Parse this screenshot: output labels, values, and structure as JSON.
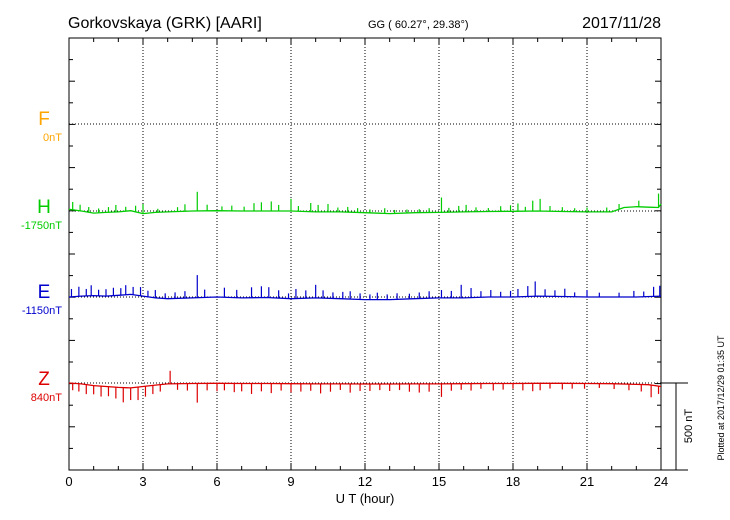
{
  "header": {
    "station": "Gorkovskaya (GRK)  [AARI]",
    "coords": "GG ( 60.27°,  29.38°)",
    "date": "2017/11/28"
  },
  "footer": {
    "plotted": "Plotted at 2017/12/29 01:35 UT"
  },
  "chart_data": {
    "type": "line",
    "xlabel": "U T (hour)",
    "xlim": [
      0,
      24
    ],
    "x_ticks": [
      "0",
      "3",
      "6",
      "9",
      "12",
      "15",
      "18",
      "21",
      "24"
    ],
    "grid": true,
    "scale_bar": {
      "label": "500 nT",
      "value_nT": 500
    },
    "series": [
      {
        "name": "F",
        "baseline": "0nT",
        "color": "#ffa500",
        "visible_data": false,
        "values": []
      },
      {
        "name": "H",
        "baseline": "-1750nT",
        "color": "#00cc00",
        "values": [
          {
            "t": 0.0,
            "v": 10
          },
          {
            "t": 0.25,
            "v": 5
          },
          {
            "t": 0.5,
            "v": 0
          },
          {
            "t": 1.0,
            "v": -12
          },
          {
            "t": 1.5,
            "v": -8
          },
          {
            "t": 2.0,
            "v": -5
          },
          {
            "t": 2.5,
            "v": 2
          },
          {
            "t": 3.0,
            "v": -15
          },
          {
            "t": 3.5,
            "v": -8
          },
          {
            "t": 4.0,
            "v": -5
          },
          {
            "t": 5.0,
            "v": 0
          },
          {
            "t": 6.0,
            "v": 2
          },
          {
            "t": 7.0,
            "v": 0
          },
          {
            "t": 8.0,
            "v": 0
          },
          {
            "t": 9.0,
            "v": 0
          },
          {
            "t": 10.0,
            "v": -5
          },
          {
            "t": 11.0,
            "v": -5
          },
          {
            "t": 12.0,
            "v": -10
          },
          {
            "t": 13.0,
            "v": -15
          },
          {
            "t": 14.0,
            "v": -10
          },
          {
            "t": 15.0,
            "v": -8
          },
          {
            "t": 16.0,
            "v": -5
          },
          {
            "t": 17.0,
            "v": -3
          },
          {
            "t": 18.0,
            "v": -2
          },
          {
            "t": 19.0,
            "v": 0
          },
          {
            "t": 20.0,
            "v": -3
          },
          {
            "t": 21.0,
            "v": -5
          },
          {
            "t": 22.0,
            "v": -5
          },
          {
            "t": 22.5,
            "v": 20
          },
          {
            "t": 23.0,
            "v": 25
          },
          {
            "t": 23.5,
            "v": 22
          },
          {
            "t": 23.9,
            "v": 20
          },
          {
            "t": 24.0,
            "v": 40
          }
        ],
        "spikes": [
          {
            "t": 0.15,
            "h": 45
          },
          {
            "t": 0.45,
            "h": 35
          },
          {
            "t": 0.8,
            "h": 30
          },
          {
            "t": 1.2,
            "h": 25
          },
          {
            "t": 1.6,
            "h": 30
          },
          {
            "t": 1.9,
            "h": 40
          },
          {
            "t": 2.3,
            "h": 25
          },
          {
            "t": 2.7,
            "h": 35
          },
          {
            "t": 3.0,
            "h": 55
          },
          {
            "t": 3.6,
            "h": 20
          },
          {
            "t": 4.4,
            "h": 25
          },
          {
            "t": 4.7,
            "h": 40
          },
          {
            "t": 5.2,
            "h": 110
          },
          {
            "t": 5.6,
            "h": 35
          },
          {
            "t": 6.2,
            "h": 25
          },
          {
            "t": 6.6,
            "h": 30
          },
          {
            "t": 7.1,
            "h": 25
          },
          {
            "t": 7.5,
            "h": 45
          },
          {
            "t": 7.8,
            "h": 50
          },
          {
            "t": 8.2,
            "h": 55
          },
          {
            "t": 8.5,
            "h": 35
          },
          {
            "t": 9.0,
            "h": 70
          },
          {
            "t": 9.3,
            "h": 30
          },
          {
            "t": 9.8,
            "h": 50
          },
          {
            "t": 10.1,
            "h": 40
          },
          {
            "t": 10.5,
            "h": 45
          },
          {
            "t": 10.9,
            "h": 25
          },
          {
            "t": 11.3,
            "h": 30
          },
          {
            "t": 11.7,
            "h": 25
          },
          {
            "t": 12.2,
            "h": 20
          },
          {
            "t": 12.8,
            "h": 30
          },
          {
            "t": 13.2,
            "h": 20
          },
          {
            "t": 13.7,
            "h": 20
          },
          {
            "t": 14.2,
            "h": 20
          },
          {
            "t": 14.6,
            "h": 25
          },
          {
            "t": 15.1,
            "h": 85
          },
          {
            "t": 15.4,
            "h": 25
          },
          {
            "t": 15.8,
            "h": 35
          },
          {
            "t": 16.1,
            "h": 40
          },
          {
            "t": 16.5,
            "h": 25
          },
          {
            "t": 17.0,
            "h": 20
          },
          {
            "t": 17.5,
            "h": 30
          },
          {
            "t": 17.9,
            "h": 35
          },
          {
            "t": 18.2,
            "h": 45
          },
          {
            "t": 18.5,
            "h": 25
          },
          {
            "t": 18.8,
            "h": 60
          },
          {
            "t": 19.1,
            "h": 70
          },
          {
            "t": 19.5,
            "h": 30
          },
          {
            "t": 20.0,
            "h": 25
          },
          {
            "t": 20.5,
            "h": 20
          },
          {
            "t": 21.0,
            "h": 25
          },
          {
            "t": 21.8,
            "h": 25
          },
          {
            "t": 22.3,
            "h": 30
          },
          {
            "t": 23.1,
            "h": 35
          },
          {
            "t": 23.9,
            "h": 80
          }
        ]
      },
      {
        "name": "E",
        "baseline": "-1150nT",
        "color": "#0000cc",
        "values": [
          {
            "t": 0.0,
            "v": 0
          },
          {
            "t": 0.5,
            "v": 5
          },
          {
            "t": 1.0,
            "v": 8
          },
          {
            "t": 1.5,
            "v": 5
          },
          {
            "t": 2.0,
            "v": 10
          },
          {
            "t": 2.5,
            "v": 15
          },
          {
            "t": 3.0,
            "v": 5
          },
          {
            "t": 3.5,
            "v": -5
          },
          {
            "t": 4.0,
            "v": -10
          },
          {
            "t": 5.0,
            "v": -5
          },
          {
            "t": 6.0,
            "v": 0
          },
          {
            "t": 7.0,
            "v": -5
          },
          {
            "t": 8.0,
            "v": -3
          },
          {
            "t": 9.0,
            "v": -10
          },
          {
            "t": 10.0,
            "v": -5
          },
          {
            "t": 11.0,
            "v": -10
          },
          {
            "t": 12.0,
            "v": -15
          },
          {
            "t": 13.0,
            "v": -15
          },
          {
            "t": 14.0,
            "v": -10
          },
          {
            "t": 15.0,
            "v": -5
          },
          {
            "t": 16.0,
            "v": -5
          },
          {
            "t": 17.0,
            "v": 0
          },
          {
            "t": 18.0,
            "v": 0
          },
          {
            "t": 19.0,
            "v": 5
          },
          {
            "t": 20.0,
            "v": 3
          },
          {
            "t": 21.0,
            "v": 0
          },
          {
            "t": 22.0,
            "v": 0
          },
          {
            "t": 23.0,
            "v": 0
          },
          {
            "t": 24.0,
            "v": 5
          }
        ],
        "spikes": [
          {
            "t": 0.1,
            "h": 45
          },
          {
            "t": 0.4,
            "h": 55
          },
          {
            "t": 0.7,
            "h": 40
          },
          {
            "t": 0.9,
            "h": 60
          },
          {
            "t": 1.2,
            "h": 35
          },
          {
            "t": 1.5,
            "h": 40
          },
          {
            "t": 1.8,
            "h": 45
          },
          {
            "t": 2.1,
            "h": 40
          },
          {
            "t": 2.3,
            "h": 55
          },
          {
            "t": 2.6,
            "h": 45
          },
          {
            "t": 2.9,
            "h": 50
          },
          {
            "t": 3.2,
            "h": 35
          },
          {
            "t": 3.5,
            "h": 45
          },
          {
            "t": 3.9,
            "h": 30
          },
          {
            "t": 4.3,
            "h": 35
          },
          {
            "t": 4.7,
            "h": 40
          },
          {
            "t": 5.2,
            "h": 130
          },
          {
            "t": 5.5,
            "h": 45
          },
          {
            "t": 6.3,
            "h": 55
          },
          {
            "t": 6.8,
            "h": 45
          },
          {
            "t": 7.4,
            "h": 60
          },
          {
            "t": 7.8,
            "h": 65
          },
          {
            "t": 8.1,
            "h": 60
          },
          {
            "t": 8.5,
            "h": 45
          },
          {
            "t": 8.9,
            "h": 30
          },
          {
            "t": 9.2,
            "h": 55
          },
          {
            "t": 9.6,
            "h": 45
          },
          {
            "t": 10.0,
            "h": 75
          },
          {
            "t": 10.3,
            "h": 45
          },
          {
            "t": 10.7,
            "h": 35
          },
          {
            "t": 11.1,
            "h": 40
          },
          {
            "t": 11.4,
            "h": 45
          },
          {
            "t": 11.8,
            "h": 35
          },
          {
            "t": 12.2,
            "h": 30
          },
          {
            "t": 12.5,
            "h": 40
          },
          {
            "t": 12.9,
            "h": 30
          },
          {
            "t": 13.3,
            "h": 35
          },
          {
            "t": 13.8,
            "h": 30
          },
          {
            "t": 14.2,
            "h": 35
          },
          {
            "t": 14.6,
            "h": 40
          },
          {
            "t": 15.1,
            "h": 45
          },
          {
            "t": 15.5,
            "h": 40
          },
          {
            "t": 15.9,
            "h": 75
          },
          {
            "t": 16.3,
            "h": 55
          },
          {
            "t": 16.7,
            "h": 35
          },
          {
            "t": 17.1,
            "h": 40
          },
          {
            "t": 17.5,
            "h": 30
          },
          {
            "t": 17.9,
            "h": 35
          },
          {
            "t": 18.2,
            "h": 45
          },
          {
            "t": 18.6,
            "h": 60
          },
          {
            "t": 18.9,
            "h": 85
          },
          {
            "t": 19.3,
            "h": 40
          },
          {
            "t": 19.7,
            "h": 35
          },
          {
            "t": 20.1,
            "h": 45
          },
          {
            "t": 20.5,
            "h": 25
          },
          {
            "t": 21.0,
            "h": 40
          },
          {
            "t": 21.5,
            "h": 25
          },
          {
            "t": 22.3,
            "h": 25
          },
          {
            "t": 22.9,
            "h": 35
          },
          {
            "t": 23.3,
            "h": 30
          },
          {
            "t": 23.7,
            "h": 55
          },
          {
            "t": 23.95,
            "h": 60
          }
        ]
      },
      {
        "name": "Z",
        "baseline": "840nT",
        "color": "#dd0000",
        "values": [
          {
            "t": 0.0,
            "v": 0
          },
          {
            "t": 0.5,
            "v": -5
          },
          {
            "t": 1.0,
            "v": -15
          },
          {
            "t": 1.5,
            "v": -20
          },
          {
            "t": 2.0,
            "v": -25
          },
          {
            "t": 2.5,
            "v": -28
          },
          {
            "t": 3.0,
            "v": -20
          },
          {
            "t": 3.5,
            "v": -12
          },
          {
            "t": 4.0,
            "v": -5
          },
          {
            "t": 5.0,
            "v": -3
          },
          {
            "t": 6.0,
            "v": -2
          },
          {
            "t": 7.0,
            "v": -3
          },
          {
            "t": 8.0,
            "v": -3
          },
          {
            "t": 9.0,
            "v": -4
          },
          {
            "t": 10.0,
            "v": -5
          },
          {
            "t": 11.0,
            "v": -5
          },
          {
            "t": 12.0,
            "v": -6
          },
          {
            "t": 13.0,
            "v": -6
          },
          {
            "t": 14.0,
            "v": -5
          },
          {
            "t": 15.0,
            "v": -5
          },
          {
            "t": 16.0,
            "v": -4
          },
          {
            "t": 17.0,
            "v": -3
          },
          {
            "t": 18.0,
            "v": -3
          },
          {
            "t": 19.0,
            "v": -2
          },
          {
            "t": 20.0,
            "v": -2
          },
          {
            "t": 21.0,
            "v": -3
          },
          {
            "t": 22.0,
            "v": -4
          },
          {
            "t": 23.0,
            "v": -8
          },
          {
            "t": 23.5,
            "v": -10
          },
          {
            "t": 24.0,
            "v": -20
          }
        ],
        "spikes": [
          {
            "t": 0.15,
            "h": -40
          },
          {
            "t": 0.4,
            "h": -45
          },
          {
            "t": 0.7,
            "h": -55
          },
          {
            "t": 1.0,
            "h": -50
          },
          {
            "t": 1.3,
            "h": -60
          },
          {
            "t": 1.6,
            "h": -55
          },
          {
            "t": 1.9,
            "h": -65
          },
          {
            "t": 2.2,
            "h": -85
          },
          {
            "t": 2.5,
            "h": -70
          },
          {
            "t": 2.8,
            "h": -75
          },
          {
            "t": 3.1,
            "h": -60
          },
          {
            "t": 3.4,
            "h": -50
          },
          {
            "t": 3.7,
            "h": -40
          },
          {
            "t": 4.1,
            "h": 75
          },
          {
            "t": 4.4,
            "h": -35
          },
          {
            "t": 4.8,
            "h": -40
          },
          {
            "t": 5.2,
            "h": -110
          },
          {
            "t": 5.6,
            "h": -40
          },
          {
            "t": 6.0,
            "h": -45
          },
          {
            "t": 6.3,
            "h": -40
          },
          {
            "t": 6.7,
            "h": -50
          },
          {
            "t": 7.0,
            "h": -45
          },
          {
            "t": 7.4,
            "h": -60
          },
          {
            "t": 7.8,
            "h": -45
          },
          {
            "t": 8.2,
            "h": -55
          },
          {
            "t": 8.6,
            "h": -40
          },
          {
            "t": 9.0,
            "h": -50
          },
          {
            "t": 9.4,
            "h": -45
          },
          {
            "t": 9.8,
            "h": -40
          },
          {
            "t": 10.2,
            "h": -55
          },
          {
            "t": 10.6,
            "h": -45
          },
          {
            "t": 11.0,
            "h": -35
          },
          {
            "t": 11.4,
            "h": -50
          },
          {
            "t": 11.8,
            "h": -40
          },
          {
            "t": 12.2,
            "h": -40
          },
          {
            "t": 12.6,
            "h": -35
          },
          {
            "t": 13.0,
            "h": -40
          },
          {
            "t": 13.4,
            "h": -35
          },
          {
            "t": 13.8,
            "h": -45
          },
          {
            "t": 14.2,
            "h": -50
          },
          {
            "t": 14.6,
            "h": -45
          },
          {
            "t": 15.1,
            "h": -75
          },
          {
            "t": 15.5,
            "h": -40
          },
          {
            "t": 15.9,
            "h": -35
          },
          {
            "t": 16.3,
            "h": -40
          },
          {
            "t": 16.7,
            "h": -30
          },
          {
            "t": 17.2,
            "h": -40
          },
          {
            "t": 17.6,
            "h": -35
          },
          {
            "t": 18.0,
            "h": -30
          },
          {
            "t": 18.4,
            "h": -40
          },
          {
            "t": 18.8,
            "h": -45
          },
          {
            "t": 19.1,
            "h": -40
          },
          {
            "t": 19.5,
            "h": -30
          },
          {
            "t": 20.0,
            "h": -35
          },
          {
            "t": 20.4,
            "h": -30
          },
          {
            "t": 20.9,
            "h": -30
          },
          {
            "t": 21.5,
            "h": -25
          },
          {
            "t": 22.1,
            "h": -30
          },
          {
            "t": 22.7,
            "h": -35
          },
          {
            "t": 23.2,
            "h": -40
          },
          {
            "t": 23.6,
            "h": -70
          },
          {
            "t": 23.9,
            "h": -45
          }
        ]
      }
    ]
  }
}
